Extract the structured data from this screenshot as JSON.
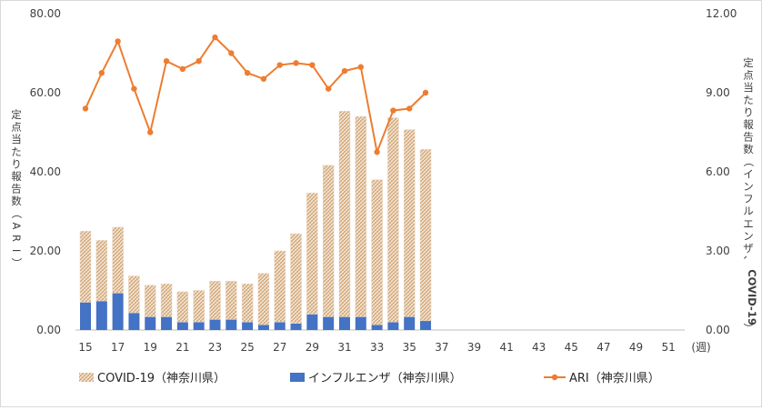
{
  "chart_data": {
    "type": "bar",
    "title": "",
    "x_unit": "(週)",
    "x_ticks": [
      "15",
      "17",
      "19",
      "21",
      "23",
      "25",
      "27",
      "29",
      "31",
      "33",
      "35",
      "37",
      "39",
      "41",
      "43",
      "45",
      "47",
      "49",
      "51"
    ],
    "x": [
      15,
      16,
      17,
      18,
      19,
      20,
      21,
      22,
      23,
      24,
      25,
      26,
      27,
      28,
      29,
      30,
      31,
      32,
      33,
      34,
      35,
      36
    ],
    "x_range": [
      15,
      52
    ],
    "y_left": {
      "label": "定点当たり報告数（ARI）",
      "range": [
        0,
        80
      ],
      "ticks": [
        "0.00",
        "20.00",
        "40.00",
        "60.00",
        "80.00"
      ],
      "tick_values": [
        0,
        20,
        40,
        60,
        80
      ]
    },
    "y_right": {
      "label": "定点当たり報告数（インフルエンザ、COVID-19）",
      "range": [
        0,
        12
      ],
      "ticks": [
        "0.00",
        "3.00",
        "6.00",
        "9.00",
        "12.00"
      ],
      "tick_values": [
        0,
        3,
        6,
        9,
        12
      ]
    },
    "series": [
      {
        "name": "COVID-19（神奈川県）",
        "kind": "bar",
        "axis": "right",
        "color": "#d9b38c",
        "pattern": "hatched",
        "values": [
          2.7,
          2.3,
          2.5,
          1.4,
          1.2,
          1.25,
          1.15,
          1.2,
          1.45,
          1.45,
          1.45,
          1.95,
          2.7,
          3.4,
          4.6,
          5.75,
          7.8,
          7.6,
          5.5,
          7.75,
          7.1,
          6.5
        ]
      },
      {
        "name": "インフルエンザ（神奈川県）",
        "kind": "bar",
        "axis": "right",
        "color": "#4472c4",
        "values": [
          1.05,
          1.1,
          1.4,
          0.65,
          0.5,
          0.5,
          0.3,
          0.3,
          0.4,
          0.4,
          0.3,
          0.2,
          0.3,
          0.25,
          0.6,
          0.5,
          0.5,
          0.5,
          0.2,
          0.3,
          0.5,
          0.35
        ]
      },
      {
        "name": "ARI（神奈川県）",
        "kind": "line",
        "axis": "left",
        "color": "#ed7d31",
        "values": [
          56,
          65,
          73,
          61,
          50,
          68,
          66,
          68,
          74,
          70,
          65,
          63.5,
          67,
          67.5,
          67,
          61,
          65.5,
          66.5,
          45,
          55.5,
          56,
          60
        ]
      }
    ],
    "legend_position": "bottom",
    "grid": false
  }
}
